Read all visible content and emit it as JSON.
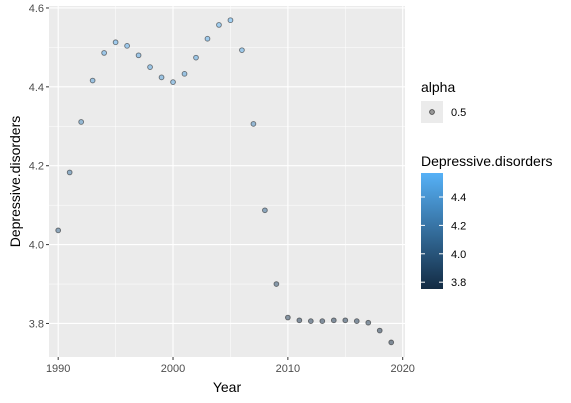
{
  "chart_data": {
    "type": "scatter",
    "xlabel": "Year",
    "ylabel": "Depressive.disorders",
    "xlim": [
      1989.2,
      2020.2
    ],
    "ylim": [
      3.715,
      4.605
    ],
    "x_ticks": [
      1990,
      2000,
      2010,
      2020
    ],
    "y_ticks": [
      3.8,
      4.0,
      4.2,
      4.4,
      4.6
    ],
    "x_tick_labels": [
      "1990",
      "2000",
      "2010",
      "2020"
    ],
    "y_tick_labels": [
      "3.8",
      "4.0",
      "4.2",
      "4.4",
      "4.6"
    ],
    "grid": true,
    "point_alpha": 0.5,
    "x": [
      1990,
      1991,
      1992,
      1993,
      1994,
      1995,
      1996,
      1997,
      1998,
      1999,
      2000,
      2001,
      2002,
      2003,
      2004,
      2005,
      2006,
      2007,
      2008,
      2009,
      2010,
      2011,
      2012,
      2013,
      2014,
      2015,
      2016,
      2017,
      2018,
      2019
    ],
    "y": [
      4.036,
      4.183,
      4.311,
      4.416,
      4.486,
      4.513,
      4.504,
      4.48,
      4.45,
      4.424,
      4.412,
      4.433,
      4.474,
      4.522,
      4.557,
      4.569,
      4.493,
      4.306,
      4.087,
      3.9,
      3.815,
      3.808,
      3.806,
      3.806,
      3.808,
      3.808,
      3.806,
      3.802,
      3.782,
      3.752
    ],
    "legend_placement": "right",
    "alpha_legend": {
      "title": "alpha",
      "label": "0.5"
    },
    "color_legend": {
      "title": "Depressive.disorders",
      "ticks": [
        3.8,
        4.0,
        4.2,
        4.4
      ],
      "tick_labels": [
        "3.8",
        "4.0",
        "4.2",
        "4.4"
      ],
      "low_color": "#132B43",
      "high_color": "#56B1F7"
    },
    "colors": {
      "panel_background": "#EBEBEB",
      "grid_major": "#FFFFFF",
      "point_stroke": "#1a1a1a"
    }
  }
}
